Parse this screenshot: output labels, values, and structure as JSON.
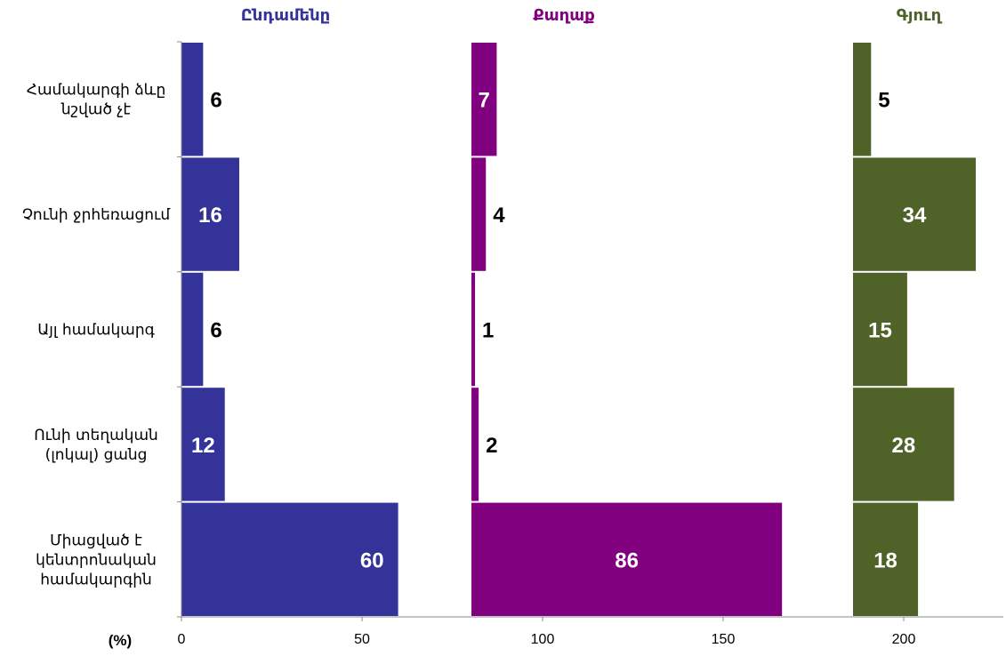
{
  "chart_data": {
    "type": "bar",
    "orientation": "horizontal",
    "layout": "three side-by-side panels on a shared x axis",
    "categories": [
      "Համակարգի ձևը նշված չէ",
      "Չունի ջրհեռացում",
      "Այլ համակարգ",
      "Ունի տեղական (լոկալ) ցանց",
      "Միացված է կենտրոնական համակարգին"
    ],
    "series": [
      {
        "name": "Ընդամենը",
        "color": "#333399",
        "values": [
          6,
          16,
          6,
          12,
          60
        ]
      },
      {
        "name": "Քաղաք",
        "color": "#800080",
        "values": [
          7,
          4,
          1,
          2,
          86
        ]
      },
      {
        "name": "Գյուղ",
        "color": "#4f6228",
        "values": [
          5,
          34,
          15,
          28,
          18
        ]
      }
    ],
    "x_ticks": [
      "0",
      "50",
      "100",
      "150",
      "200"
    ],
    "x_unit_label": "(%)",
    "xlim": [
      0,
      230
    ],
    "grid": false,
    "legend": "none"
  }
}
